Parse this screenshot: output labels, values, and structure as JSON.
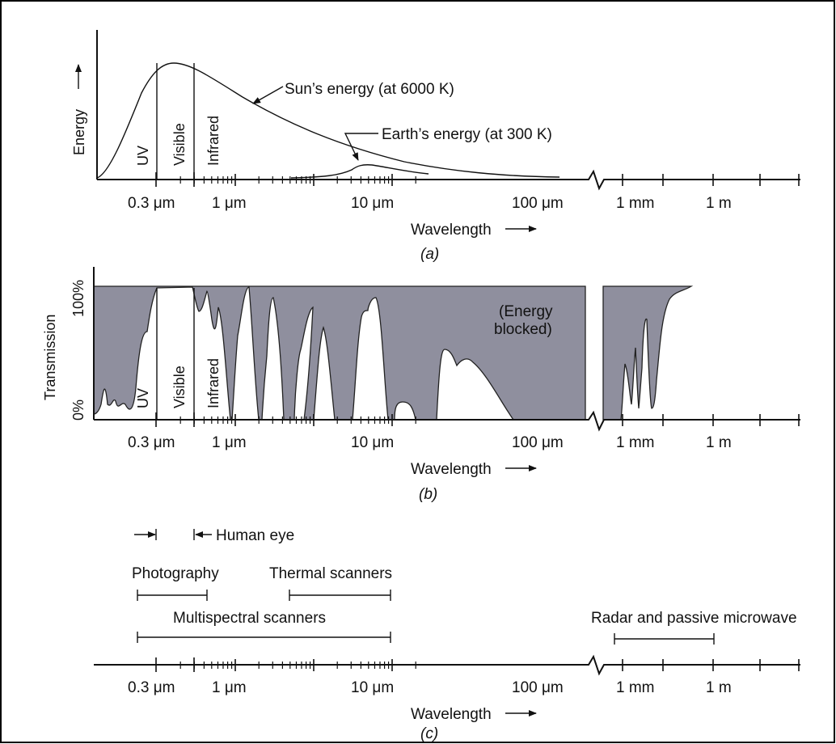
{
  "units": {
    "u03": "0.3 μm",
    "u1": "1 μm",
    "u10": "10 μm",
    "u100": "100 μm",
    "mm": "1 mm",
    "m": "1 m"
  },
  "wavelength_label": "Wavelength",
  "panel_a": {
    "caption": "(a)",
    "y_label": "Energy",
    "bands": {
      "uv": "UV",
      "visible": "Visible",
      "infrared": "Infrared"
    },
    "sun_label": "Sun’s energy (at 6000 K)",
    "earth_label": "Earth’s energy (at 300 K)"
  },
  "panel_b": {
    "caption": "(b)",
    "y_label": "Transmission",
    "y_ticks": {
      "top": "100%",
      "bottom": "0%"
    },
    "bands": {
      "uv": "UV",
      "visible": "Visible",
      "infrared": "Infrared"
    },
    "blocked_line1": "(Energy",
    "blocked_line2": "blocked)"
  },
  "panel_c": {
    "caption": "(c)",
    "sensors": {
      "human_eye": "Human eye",
      "photography": "Photography",
      "thermal": "Thermal scanners",
      "multispectral": "Multispectral scanners",
      "radar": "Radar and passive microwave"
    }
  },
  "colors": {
    "blocked_fill": "#8f8f9e",
    "line": "#111111",
    "frame": "#000000"
  }
}
